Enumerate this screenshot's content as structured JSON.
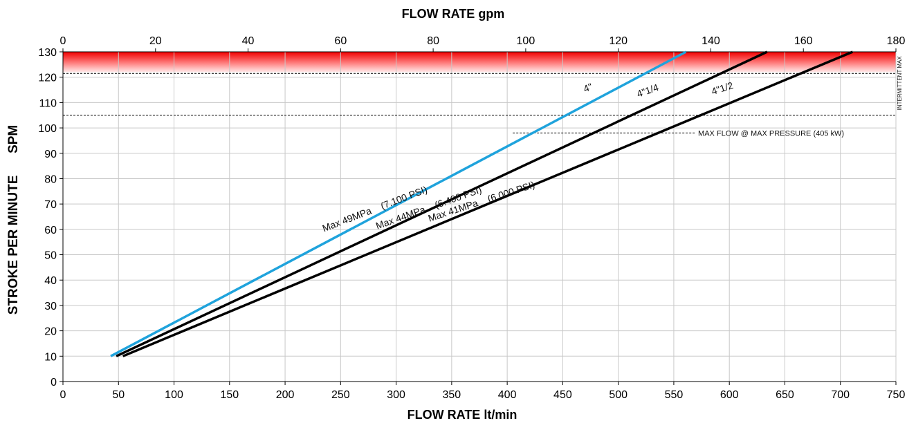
{
  "chart_data": {
    "type": "line",
    "xlabel_bottom": "FLOW RATE  lt/min",
    "xlabel_top": "FLOW RATE  gpm",
    "ylabel": "STROKE PER MINUTE      SPM",
    "x_bottom": {
      "min": 0,
      "max": 750,
      "step": 50
    },
    "x_top": {
      "min": 0,
      "max": 180,
      "step": 20,
      "labels": [
        "0",
        "20",
        "40",
        "60",
        "80",
        "100",
        "120",
        "140",
        "160",
        "180"
      ]
    },
    "y": {
      "min": 0,
      "max": 130,
      "step": 10
    },
    "grid": true,
    "series": [
      {
        "name": "4\"",
        "color": "#1fa3dc",
        "x": [
          43,
          561
        ],
        "y": [
          10,
          130
        ]
      },
      {
        "name": "4\"1/4",
        "color": "#000000",
        "x": [
          48,
          634
        ],
        "y": [
          10,
          130
        ]
      },
      {
        "name": "4\"1/2",
        "color": "#000000",
        "x": [
          54,
          711
        ],
        "y": [
          10,
          130
        ]
      }
    ],
    "pressure_labels": [
      {
        "text": "Max 49MPa    (7.100 PSI)",
        "x": 235,
        "y": 59,
        "angle": -21
      },
      {
        "text": "Max 44MPa    (6.400 PSI)",
        "x": 283,
        "y": 60,
        "angle": -19.5
      },
      {
        "text": "Max 41MPa    (6.000 PSI)",
        "x": 330,
        "y": 63,
        "angle": -18
      }
    ],
    "series_labels": [
      {
        "text": "4\"",
        "x": 470,
        "y": 114,
        "angle": -21
      },
      {
        "text": "4\"1/4",
        "x": 518,
        "y": 112,
        "angle": -19.5
      },
      {
        "text": "4\"1/2",
        "x": 585,
        "y": 113,
        "angle": -18
      }
    ],
    "max_band": {
      "y_from": 122,
      "y_to": 130,
      "color_top": "#f20000",
      "color_bottom": "#ffe9e9"
    },
    "reference_lines": [
      {
        "y": 121.5,
        "x_from": 0,
        "x_to": 750,
        "style": "dashed"
      },
      {
        "y": 105,
        "x_from": 0,
        "x_to": 750,
        "style": "dashed"
      },
      {
        "y": 98,
        "x_from": 405,
        "x_to": 570,
        "style": "dashed",
        "label": "MAX  FLOW @ MAX PRESSURE (405 kW)"
      }
    ],
    "side_labels": {
      "max": "MAX",
      "intermittent": "INTERMITTENT"
    }
  }
}
